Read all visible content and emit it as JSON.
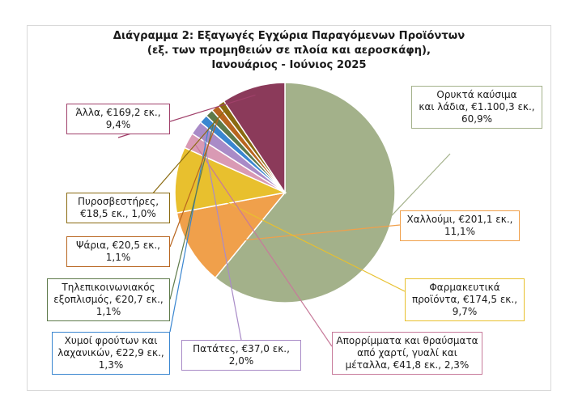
{
  "chart_data": {
    "type": "pie",
    "title": [
      "Διάγραμμα 2: Εξαγωγές Εγχώρια Παραγόμενων Προϊόντων",
      "(εξ. των προμηθειών σε πλοία και αεροσκάφη),",
      "Ιανουάριος - Ιούνιος 2025"
    ],
    "slices": [
      {
        "lines": [
          "Ορυκτά καύσιμα",
          "και λάδια, €1.100,3 εκ.,",
          "60,9%"
        ],
        "value": 1100.3,
        "percent": 60.9,
        "color": "#a3b18a",
        "border": "#a3b18a"
      },
      {
        "lines": [
          "Χαλλούμι, €201,1 εκ.,",
          "11,1%"
        ],
        "value": 201.1,
        "percent": 11.1,
        "color": "#f0a04b",
        "border": "#f0a04b"
      },
      {
        "lines": [
          "Φαρμακευτικά",
          "προϊόντα, €174,5 εκ.,",
          "9,7%"
        ],
        "value": 174.5,
        "percent": 9.7,
        "color": "#e8c02e",
        "border": "#e8c02e"
      },
      {
        "lines": [
          "Απορρίμματα και θραύσματα",
          "από χαρτί, γυαλί και",
          "μέταλλα, €41,8 εκ., 2,3%"
        ],
        "value": 41.8,
        "percent": 2.3,
        "color": "#d99ab4",
        "border": "#c77a9a"
      },
      {
        "lines": [
          "Πατάτες, €37,0 εκ.,",
          "2,0%"
        ],
        "value": 37.0,
        "percent": 2.0,
        "color": "#a98bc7",
        "border": "#a98bc7"
      },
      {
        "lines": [
          "Χυμοί φρούτων και",
          "λαχανικών, €22,9 εκ.,",
          "1,3%"
        ],
        "value": 22.9,
        "percent": 1.3,
        "color": "#3a86d0",
        "border": "#3a86d0"
      },
      {
        "lines": [
          "Τηλεπικοινωνιακός",
          "εξοπλισμός, €20,7 εκ.,",
          "1,1%"
        ],
        "value": 20.7,
        "percent": 1.1,
        "color": "#5e7a4a",
        "border": "#5e7a4a"
      },
      {
        "lines": [
          "Ψάρια, €20,5 εκ.,",
          "1,1%"
        ],
        "value": 20.5,
        "percent": 1.1,
        "color": "#b8651f",
        "border": "#b8651f"
      },
      {
        "lines": [
          "Πυροσβεστήρες,",
          "€18,5 εκ., 1,0%"
        ],
        "value": 18.5,
        "percent": 1.0,
        "color": "#8a6a10",
        "border": "#8a6a10"
      },
      {
        "lines": [
          "Άλλα, €169,2 εκ.,",
          "9,4%"
        ],
        "value": 169.2,
        "percent": 9.4,
        "color": "#8b3a5a",
        "border": "#a0406a"
      }
    ],
    "start_angle_deg": -90,
    "direction": "clockwise",
    "legend": "none"
  }
}
